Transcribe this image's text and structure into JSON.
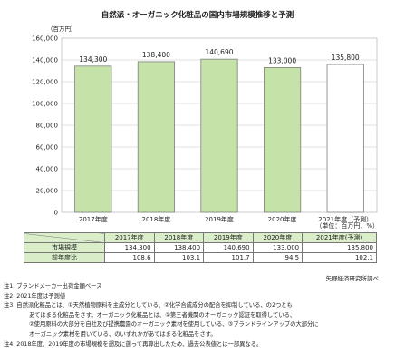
{
  "chart_data": {
    "type": "bar",
    "title": "自然派・オーガニック化粧品の国内市場規模推移と予測",
    "ylabel": "（百万円）",
    "categories": [
      "2017年度",
      "2018年度",
      "2019年度",
      "2020年度",
      "2021年度（予測）"
    ],
    "values": [
      134300,
      138400,
      140690,
      133000,
      135800
    ],
    "value_labels": [
      "134,300",
      "138,400",
      "140,690",
      "133,000",
      "135,800"
    ],
    "forecast_index": 4,
    "ylim": [
      0,
      160000
    ],
    "yticks": [
      0,
      20000,
      40000,
      60000,
      80000,
      100000,
      120000,
      140000,
      160000
    ],
    "ytick_labels": [
      "0",
      "20,000",
      "40,000",
      "60,000",
      "80,000",
      "100,000",
      "120,000",
      "140,000",
      "160,000"
    ],
    "grid": true,
    "colors": {
      "bar": "#c5e3a8",
      "forecast": "#ffffff",
      "bar_edge": "#7f7f7f"
    }
  },
  "unit_note": "（単位：百万円、%）",
  "table": {
    "headers": [
      "2017年度",
      "2018年度",
      "2019年度",
      "2020年度",
      "2021年度(予測)"
    ],
    "rows": [
      {
        "label": "市場規模",
        "values": [
          "134,300",
          "138,400",
          "140,690",
          "133,000",
          "135,800"
        ]
      },
      {
        "label": "前年度比",
        "values": [
          "108.6",
          "103.1",
          "101.7",
          "94.5",
          "102.1"
        ]
      }
    ]
  },
  "source": "矢野経済研究所調べ",
  "notes": [
    "注1. ブランドメーカー出荷金額ベース",
    "注2. 2021年度は予測値",
    "注3. 自然派化粧品とは、①天然植物原料を主成分としている、②化学合成成分の配合を抑制している、の2つとも",
    "あてはまる化粧品をさす。オーガニック化粧品とは、①第三者機関のオーガニック認証を取得している、",
    "②使用原料の大部分を自社及び提携農園のオーガニック素材を使用している、③ブランドラインアップの大部分に",
    "オーガニック素材を用いている、のいずれかがあてはまる化粧品をさす。",
    "注4. 2018年度、2019年度の市場規模を遡及に遡って再算出したため、過去公表値とは一部異なる。"
  ]
}
